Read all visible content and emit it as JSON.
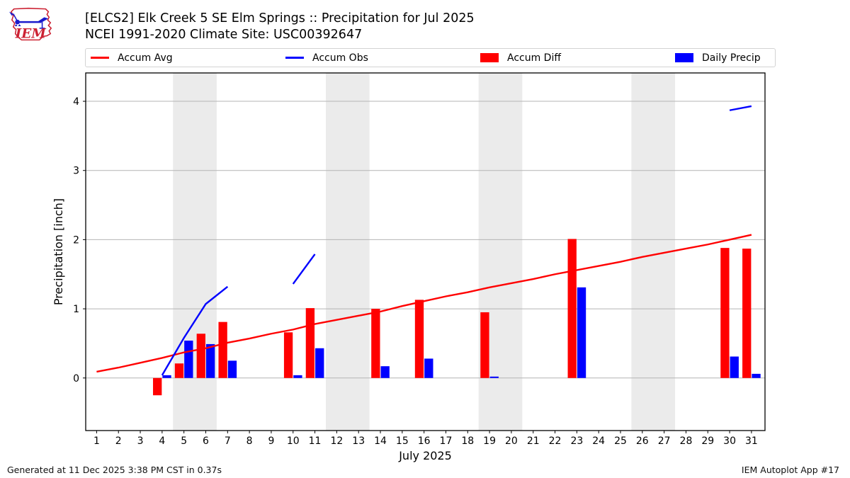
{
  "header": {
    "title_line1": "[ELCS2] Elk Creek 5 SE Elm Springs :: Precipitation for Jul 2025",
    "title_line2": "NCEI 1991-2020 Climate Site: USC00392647",
    "logo_text": "IEM"
  },
  "legend": {
    "items": [
      {
        "label": "Accum Avg",
        "color": "#ff0000",
        "swatch": "line"
      },
      {
        "label": "Accum Obs",
        "color": "#0000ff",
        "swatch": "line"
      },
      {
        "label": "Accum Diff",
        "color": "#ff0000",
        "swatch": "rect"
      },
      {
        "label": "Daily Precip",
        "color": "#0000ff",
        "swatch": "rect"
      }
    ]
  },
  "footer": {
    "left": "Generated at 11 Dec 2025 3:38 PM CST in 0.37s",
    "right": "IEM Autoplot App #17"
  },
  "chart_data": {
    "type": "combo",
    "title": "[ELCS2] Elk Creek 5 SE Elm Springs :: Precipitation for Jul 2025",
    "subtitle": "NCEI 1991-2020 Climate Site: USC00392647",
    "xlabel": "July 2025",
    "ylabel": "Precipitation [inch]",
    "xlim": [
      0.5,
      31.62
    ],
    "ylim": [
      -0.76,
      4.41
    ],
    "xticks": [
      1,
      2,
      3,
      4,
      5,
      6,
      7,
      8,
      9,
      10,
      11,
      12,
      13,
      14,
      15,
      16,
      17,
      18,
      19,
      20,
      21,
      22,
      23,
      24,
      25,
      26,
      27,
      28,
      29,
      30,
      31
    ],
    "yticks": [
      0,
      1,
      2,
      3,
      4
    ],
    "grid": true,
    "grid_color": "#b4b4b4",
    "band_color": "#ebebeb",
    "weekend_bands": [
      [
        4.5,
        6.5
      ],
      [
        11.5,
        13.5
      ],
      [
        18.5,
        20.5
      ],
      [
        25.5,
        27.5
      ]
    ],
    "series": [
      {
        "name": "Accum Avg",
        "kind": "line",
        "color": "#ff0000",
        "y": [
          0.09,
          0.15,
          0.22,
          0.29,
          0.37,
          0.43,
          0.51,
          0.57,
          0.64,
          0.7,
          0.78,
          0.84,
          0.9,
          0.96,
          1.04,
          1.11,
          1.18,
          1.24,
          1.31,
          1.37,
          1.43,
          1.5,
          1.56,
          1.62,
          1.68,
          1.75,
          1.81,
          1.87,
          1.93,
          2.0,
          2.07
        ]
      },
      {
        "name": "Accum Obs",
        "kind": "line-segments",
        "color": "#0000ff",
        "segments": [
          [
            [
              4,
              0.04
            ],
            [
              5,
              0.58
            ],
            [
              6,
              1.07
            ],
            [
              7,
              1.32
            ]
          ],
          [
            [
              10,
              1.36
            ],
            [
              11,
              1.79
            ]
          ],
          [
            [
              30,
              3.87
            ],
            [
              31,
              3.93
            ]
          ]
        ]
      },
      {
        "name": "Accum Diff",
        "kind": "bar",
        "color": "#ff0000",
        "x": [
          4,
          5,
          6,
          7,
          10,
          11,
          14,
          16,
          19,
          23,
          30,
          31
        ],
        "y": [
          -0.25,
          0.21,
          0.64,
          0.81,
          0.66,
          1.01,
          1.0,
          1.13,
          0.95,
          2.01,
          1.88,
          1.87
        ]
      },
      {
        "name": "Daily Precip",
        "kind": "bar",
        "color": "#0000ff",
        "x": [
          4,
          5,
          6,
          7,
          10,
          11,
          14,
          16,
          19,
          23,
          30,
          31
        ],
        "y": [
          0.04,
          0.54,
          0.49,
          0.25,
          0.04,
          0.43,
          0.17,
          0.28,
          0.02,
          1.31,
          0.31,
          0.06
        ]
      }
    ],
    "legend_position": "top"
  }
}
